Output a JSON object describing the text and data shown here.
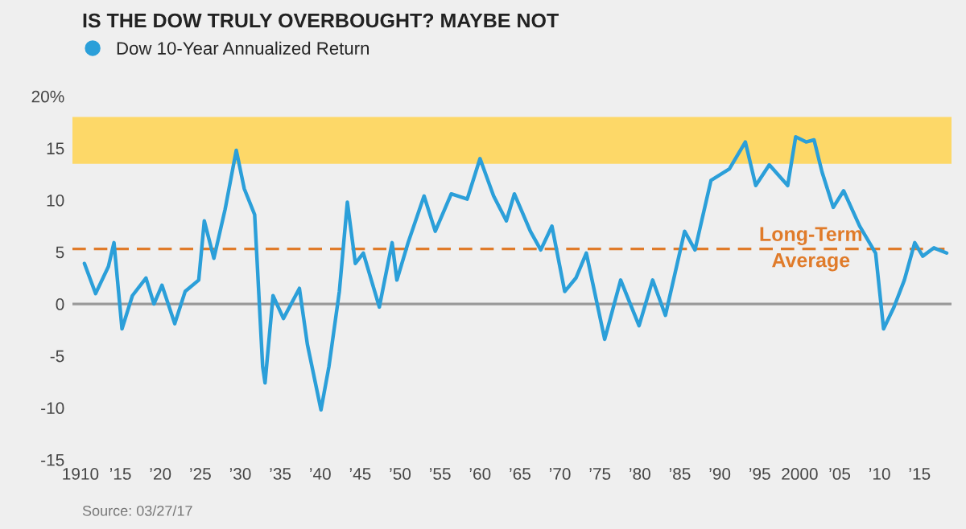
{
  "chart_data": {
    "type": "line",
    "title": "IS THE DOW TRULY OVERBOUGHT? MAYBE NOT",
    "x": [
      1910.5,
      1911.9,
      1913.5,
      1914.2,
      1915.2,
      1916.5,
      1918.2,
      1919.2,
      1920.2,
      1921.8,
      1923.1,
      1924.8,
      1925.5,
      1926.7,
      1928.1,
      1929.5,
      1930.5,
      1931.8,
      1932.8,
      1933.1,
      1934.1,
      1935.4,
      1937.4,
      1938.4,
      1940.1,
      1941.1,
      1942.4,
      1943.4,
      1944.4,
      1945.4,
      1947.4,
      1949.0,
      1949.6,
      1951.0,
      1953.0,
      1954.4,
      1956.4,
      1958.4,
      1960.0,
      1961.7,
      1963.3,
      1964.3,
      1966.3,
      1967.6,
      1969.0,
      1970.6,
      1972.0,
      1973.3,
      1975.6,
      1977.6,
      1979.9,
      1981.6,
      1983.2,
      1985.6,
      1986.9,
      1988.9,
      1991.2,
      1993.2,
      1994.5,
      1996.2,
      1998.5,
      1999.5,
      2000.8,
      2001.8,
      2002.8,
      2004.2,
      2005.5,
      2007.5,
      2009.5,
      2010.5,
      2011.8,
      2013.1,
      2014.4,
      2015.4,
      2016.8,
      2018.4
    ],
    "series": [
      {
        "name": "Dow 10-Year Annualized Return",
        "color": "#2b9fd9",
        "values": [
          3.9,
          1.0,
          3.6,
          5.9,
          -2.4,
          0.8,
          2.5,
          0.0,
          1.8,
          -1.9,
          1.2,
          2.3,
          8.0,
          4.4,
          9.1,
          14.8,
          11.1,
          8.6,
          -6.0,
          -7.6,
          0.8,
          -1.4,
          1.5,
          -3.9,
          -10.2,
          -6.0,
          1.2,
          9.8,
          3.9,
          4.9,
          -0.3,
          5.9,
          2.3,
          5.9,
          10.4,
          7.0,
          10.6,
          10.1,
          14.0,
          10.4,
          8.0,
          10.6,
          7.0,
          5.2,
          7.5,
          1.2,
          2.5,
          4.9,
          -3.4,
          2.3,
          -2.1,
          2.3,
          -1.1,
          7.0,
          5.2,
          11.9,
          13.0,
          15.6,
          11.4,
          13.4,
          11.4,
          16.1,
          15.6,
          15.8,
          12.7,
          9.3,
          10.9,
          7.5,
          4.9,
          -2.4,
          -0.3,
          2.3,
          5.9,
          4.6,
          5.4,
          4.9
        ]
      }
    ],
    "xlim": [
      1909,
      2019
    ],
    "xticks": [
      {
        "value": 1910,
        "label": "1910"
      },
      {
        "value": 1915,
        "label": "’15"
      },
      {
        "value": 1920,
        "label": "’20"
      },
      {
        "value": 1925,
        "label": "’25"
      },
      {
        "value": 1930,
        "label": "’30"
      },
      {
        "value": 1935,
        "label": "’35"
      },
      {
        "value": 1940,
        "label": "’40"
      },
      {
        "value": 1945,
        "label": "’45"
      },
      {
        "value": 1950,
        "label": "’50"
      },
      {
        "value": 1955,
        "label": "’55"
      },
      {
        "value": 1960,
        "label": "’60"
      },
      {
        "value": 1965,
        "label": "’65"
      },
      {
        "value": 1970,
        "label": "’70"
      },
      {
        "value": 1975,
        "label": "’75"
      },
      {
        "value": 1980,
        "label": "’80"
      },
      {
        "value": 1985,
        "label": "’85"
      },
      {
        "value": 1990,
        "label": "’90"
      },
      {
        "value": 1995,
        "label": "’95"
      },
      {
        "value": 2000,
        "label": "2000"
      },
      {
        "value": 2005,
        "label": "’05"
      },
      {
        "value": 2010,
        "label": "’10"
      },
      {
        "value": 2015,
        "label": "’15"
      }
    ],
    "ylim": [
      -15,
      20
    ],
    "yticks": [
      {
        "value": 20,
        "label": "20%"
      },
      15,
      10,
      5,
      0,
      -5,
      -10,
      -15
    ],
    "bands": [
      {
        "axis": "y",
        "from": 13.5,
        "to": 18,
        "color": "#fdd868"
      }
    ],
    "ref_lines": [
      {
        "axis": "y",
        "value": 5.3,
        "label": "Long-Term\nAverage",
        "color": "#e07b2a",
        "line_style": "dashed"
      },
      {
        "axis": "y",
        "value": 0,
        "color": "#9a9a9a",
        "line_style": "solid"
      }
    ],
    "annotations": [
      "Source: 03/27/17"
    ],
    "legend": "top left",
    "grid": false,
    "marker": "none",
    "line_style": "solid"
  }
}
